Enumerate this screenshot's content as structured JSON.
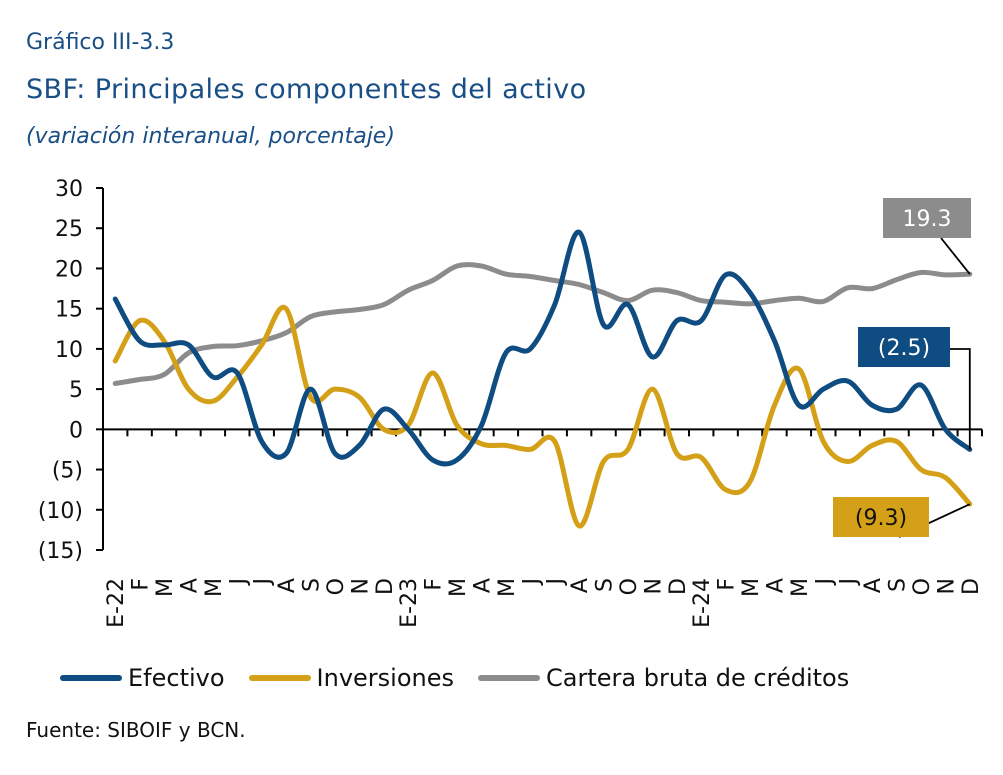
{
  "header": {
    "label": "Gráfico III-3.3",
    "title": "SBF: Principales componentes del activo",
    "subtitle": "(variación interanual, porcentaje)"
  },
  "source": "Fuente: SIBOIF y BCN.",
  "chart_data": {
    "type": "line",
    "x": [
      "E-22",
      "F",
      "M",
      "A",
      "M",
      "J",
      "J",
      "A",
      "S",
      "O",
      "N",
      "D",
      "E-23",
      "F",
      "M",
      "A",
      "M",
      "J",
      "J",
      "A",
      "S",
      "O",
      "N",
      "D",
      "E-24",
      "F",
      "M",
      "A",
      "M",
      "J",
      "J",
      "A",
      "S",
      "O",
      "N",
      "D"
    ],
    "yticks": [
      {
        "v": 30,
        "label": "30"
      },
      {
        "v": 25,
        "label": "25"
      },
      {
        "v": 20,
        "label": "20"
      },
      {
        "v": 15,
        "label": "15"
      },
      {
        "v": 10,
        "label": "10"
      },
      {
        "v": 5,
        "label": "5"
      },
      {
        "v": 0,
        "label": "0"
      },
      {
        "v": -5,
        "label": "(5)"
      },
      {
        "v": -10,
        "label": "(10)"
      },
      {
        "v": -15,
        "label": "(15)"
      }
    ],
    "ylim": [
      -15,
      30
    ],
    "series": [
      {
        "name": "Efectivo",
        "color": "#0f4c81",
        "values": [
          16.2,
          11.0,
          10.5,
          10.5,
          6.5,
          7.0,
          -1.5,
          -3.0,
          5.0,
          -3.0,
          -2.0,
          2.5,
          0.0,
          -3.8,
          -3.8,
          0.5,
          9.5,
          10.0,
          15.5,
          24.5,
          13.0,
          15.5,
          9.0,
          13.5,
          13.5,
          19.2,
          17.0,
          11.0,
          3.0,
          5.0,
          6.0,
          3.0,
          2.5,
          5.5,
          0.0,
          -2.5
        ]
      },
      {
        "name": "Inversiones",
        "color": "#d4a017",
        "values": [
          8.5,
          13.5,
          11.0,
          5.0,
          3.5,
          6.5,
          10.5,
          15.0,
          4.0,
          5.0,
          4.0,
          0.0,
          0.5,
          7.0,
          0.5,
          -1.8,
          -2.0,
          -2.5,
          -1.5,
          -12.0,
          -4.0,
          -2.5,
          5.0,
          -3.0,
          -3.5,
          -7.5,
          -6.5,
          3.0,
          7.5,
          -1.5,
          -4.0,
          -2.0,
          -1.5,
          -5.0,
          -6.0,
          -9.3
        ]
      },
      {
        "name": "Cartera bruta de créditos",
        "color": "#8c8c8c",
        "values": [
          5.7,
          6.2,
          6.8,
          9.5,
          10.3,
          10.4,
          11.0,
          12.0,
          14.0,
          14.6,
          14.9,
          15.5,
          17.3,
          18.5,
          20.3,
          20.3,
          19.3,
          19.0,
          18.5,
          18.0,
          17.0,
          16.0,
          17.3,
          17.0,
          16.0,
          15.8,
          15.6,
          16.0,
          16.3,
          15.9,
          17.6,
          17.5,
          18.6,
          19.5,
          19.2,
          19.3
        ]
      }
    ],
    "annotations": [
      {
        "text": "19.3",
        "series": "Cartera bruta de créditos",
        "color": "#8c8c8c"
      },
      {
        "text": "(2.5)",
        "series": "Efectivo",
        "color": "#0f4c81"
      },
      {
        "text": "(9.3)",
        "series": "Inversiones",
        "color": "#d4a017"
      }
    ]
  }
}
